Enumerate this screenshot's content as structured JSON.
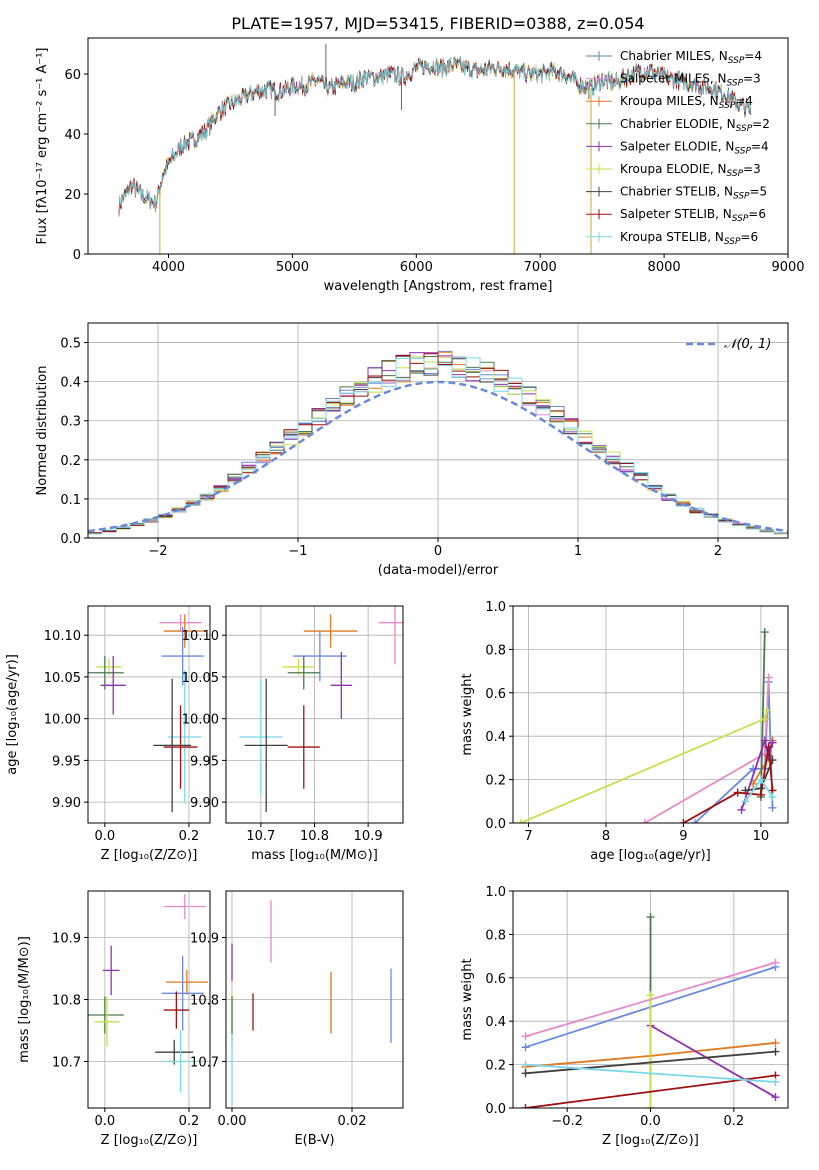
{
  "colors": {
    "Chabrier MILES": "#5a8a9a",
    "Salpeter MILES": "#e88ac8",
    "Kroupa MILES": "#e07a20",
    "Chabrier ELODIE": "#4a7a50",
    "Salpeter ELODIE": "#9030b0",
    "Kroupa ELODIE": "#c8e050",
    "Chabrier STELIB": "#404040",
    "Salpeter STELIB": "#a01010",
    "Kroupa STELIB": "#78d8e8"
  },
  "line_colors": [
    "#5a8a9a",
    "#e88ac8",
    "#e07a20",
    "#4a7a50",
    "#9030b0",
    "#c8e050",
    "#404040",
    "#a01010",
    "#78d8e8"
  ],
  "hist_colors": [
    "#6a8ae0",
    "#e88ac8",
    "#e07a20",
    "#4a7a50",
    "#9030b0",
    "#c8e050",
    "#404040",
    "#a01010",
    "#78d8e8"
  ],
  "chart_data": [
    {
      "id": "spectrum",
      "type": "line",
      "title": "PLATE=1957, MJD=53415, FIBERID=0388, z=0.054",
      "xlabel": "wavelength [Angstrom, rest frame]",
      "ylabel": "Flux [fλ10⁻¹⁷ erg cm⁻² s⁻¹ A⁻¹]",
      "xlim": [
        3350,
        9000
      ],
      "ylim": [
        0,
        72
      ],
      "xticks": [
        4000,
        5000,
        6000,
        7000,
        8000,
        9000
      ],
      "yticks": [
        0,
        20,
        40,
        60
      ],
      "grid": false,
      "legend_position": "upper right",
      "legend": [
        "Chabrier MILES, N_SSP=4",
        "Salpeter MILES, N_SSP=3",
        "Kroupa MILES, N_SSP=4",
        "Chabrier ELODIE, N_SSP=2",
        "Salpeter ELODIE, N_SSP=4",
        "Kroupa ELODIE, N_SSP=3",
        "Chabrier STELIB, N_SSP=5",
        "Salpeter STELIB, N_SSP=6",
        "Kroupa STELIB, N_SSP=6"
      ],
      "continuum": [
        [
          3600,
          16
        ],
        [
          3700,
          23
        ],
        [
          3800,
          19
        ],
        [
          3900,
          17
        ],
        [
          3950,
          26
        ],
        [
          4000,
          30
        ],
        [
          4100,
          36
        ],
        [
          4200,
          38
        ],
        [
          4300,
          41
        ],
        [
          4400,
          47
        ],
        [
          4500,
          50
        ],
        [
          4600,
          52
        ],
        [
          4700,
          54
        ],
        [
          4800,
          55
        ],
        [
          4900,
          54
        ],
        [
          5000,
          56
        ],
        [
          5100,
          56
        ],
        [
          5200,
          58
        ],
        [
          5300,
          55
        ],
        [
          5400,
          57
        ],
        [
          5500,
          57
        ],
        [
          5600,
          59
        ],
        [
          5700,
          59
        ],
        [
          5800,
          60
        ],
        [
          5900,
          59
        ],
        [
          6000,
          62
        ],
        [
          6100,
          63
        ],
        [
          6200,
          62
        ],
        [
          6300,
          63
        ],
        [
          6400,
          62
        ],
        [
          6500,
          61
        ],
        [
          6600,
          62
        ],
        [
          6700,
          62
        ],
        [
          6800,
          61
        ],
        [
          6900,
          60
        ],
        [
          7000,
          60
        ],
        [
          7100,
          61
        ],
        [
          7200,
          60
        ],
        [
          7300,
          57
        ],
        [
          7400,
          55
        ],
        [
          7500,
          58
        ],
        [
          7600,
          57
        ],
        [
          7700,
          59
        ],
        [
          7800,
          61
        ],
        [
          7900,
          61
        ],
        [
          8000,
          59
        ],
        [
          8100,
          58
        ],
        [
          8200,
          57
        ],
        [
          8300,
          56
        ],
        [
          8400,
          55
        ],
        [
          8500,
          53
        ],
        [
          8600,
          50
        ],
        [
          8700,
          48
        ]
      ],
      "spikes": [
        [
          5270,
          70
        ],
        [
          3930,
          0
        ],
        [
          6790,
          0
        ],
        [
          7410,
          0
        ],
        [
          5880,
          48
        ],
        [
          4860,
          46
        ]
      ]
    },
    {
      "id": "residuals",
      "type": "histogram",
      "xlabel": "(data-model)/error",
      "ylabel": "Normed distribution",
      "xlim": [
        -2.5,
        2.5
      ],
      "ylim": [
        0,
        0.55
      ],
      "xticks": [
        -2,
        -1,
        0,
        1,
        2
      ],
      "yticks": [
        0,
        0.1,
        0.2,
        0.3,
        0.4,
        0.5
      ],
      "xtick_labels": [
        "−2",
        "−1",
        "0",
        "1",
        "2"
      ],
      "grid": true,
      "legend": [
        "𝒩(0, 1)"
      ],
      "legend_position": "upper right",
      "bin_width": 0.1
    },
    {
      "id": "age-vs-z",
      "type": "scatter",
      "errorbars": true,
      "xlabel": "Z [log₁₀(Z/Z⊙)]",
      "ylabel": "age  [log₁₀(age/yr)]",
      "xlim": [
        -0.04,
        0.25
      ],
      "ylim": [
        9.875,
        10.135
      ],
      "xticks": [
        0.0,
        0.2
      ],
      "yticks": [
        9.9,
        9.95,
        10.0,
        10.05,
        10.1
      ],
      "grid": true,
      "points": [
        {
          "x": 0.01,
          "y": 10.062,
          "xerr": 0.03,
          "yerr": 0.01,
          "c": 5
        },
        {
          "x": 0.0,
          "y": 10.055,
          "xerr": 0.045,
          "yerr": 0.02,
          "c": 3
        },
        {
          "x": 0.02,
          "y": 10.04,
          "xerr": 0.03,
          "yerr": 0.035,
          "c": 4
        },
        {
          "x": 0.18,
          "y": 10.115,
          "xerr": 0.05,
          "yerr": 0.01,
          "c": 1
        },
        {
          "x": 0.19,
          "y": 10.105,
          "xerr": 0.05,
          "yerr": 0.02,
          "c": 2
        },
        {
          "x": 0.185,
          "y": 10.075,
          "xerr": 0.05,
          "yerr": 0.035,
          "c": 0
        },
        {
          "x": 0.19,
          "y": 9.978,
          "xerr": 0.04,
          "yerr": 0.08,
          "c": 8
        },
        {
          "x": 0.16,
          "y": 9.968,
          "xerr": 0.045,
          "yerr": 0.08,
          "c": 6
        },
        {
          "x": 0.18,
          "y": 9.966,
          "xerr": 0.04,
          "yerr": 0.05,
          "c": 7
        }
      ]
    },
    {
      "id": "age-vs-mass",
      "type": "scatter",
      "errorbars": true,
      "xlabel": "mass [log₁₀(M/M⊙)]",
      "ylabel": "",
      "xlim": [
        10.635,
        10.965
      ],
      "ylim": [
        9.875,
        10.135
      ],
      "xticks": [
        10.7,
        10.8,
        10.9
      ],
      "yticks": [
        9.9,
        9.95,
        10.0,
        10.05,
        10.1
      ],
      "grid": true,
      "points": [
        {
          "x": 10.95,
          "y": 10.115,
          "xerr": 0.03,
          "yerr": 0.05,
          "c": 1
        },
        {
          "x": 10.83,
          "y": 10.105,
          "xerr": 0.05,
          "yerr": 0.02,
          "c": 2
        },
        {
          "x": 10.81,
          "y": 10.075,
          "xerr": 0.05,
          "yerr": 0.03,
          "c": 0
        },
        {
          "x": 10.77,
          "y": 10.062,
          "xerr": 0.03,
          "yerr": 0.01,
          "c": 5
        },
        {
          "x": 10.78,
          "y": 10.055,
          "xerr": 0.03,
          "yerr": 0.02,
          "c": 3
        },
        {
          "x": 10.85,
          "y": 10.04,
          "xerr": 0.02,
          "yerr": 0.04,
          "c": 4
        },
        {
          "x": 10.7,
          "y": 9.978,
          "xerr": 0.04,
          "yerr": 0.07,
          "c": 8
        },
        {
          "x": 10.71,
          "y": 9.968,
          "xerr": 0.04,
          "yerr": 0.08,
          "c": 6
        },
        {
          "x": 10.78,
          "y": 9.966,
          "xerr": 0.03,
          "yerr": 0.05,
          "c": 7
        }
      ]
    },
    {
      "id": "weight-vs-age",
      "type": "line",
      "xlabel": "age  [log₁₀(age/yr)]",
      "ylabel": "mass weight",
      "xlim": [
        6.8,
        10.35
      ],
      "ylim": [
        0,
        1.0
      ],
      "xticks": [
        7,
        8,
        9,
        10
      ],
      "yticks": [
        0.0,
        0.2,
        0.4,
        0.6,
        0.8,
        1.0
      ],
      "grid": true,
      "series": [
        {
          "c": 0,
          "pts": [
            [
              9.15,
              0.0
            ],
            [
              9.9,
              0.25
            ],
            [
              10.05,
              0.25
            ],
            [
              10.1,
              0.65
            ],
            [
              10.15,
              0.07
            ]
          ]
        },
        {
          "c": 1,
          "pts": [
            [
              8.5,
              0.0
            ],
            [
              10.05,
              0.32
            ],
            [
              10.1,
              0.67
            ]
          ]
        },
        {
          "c": 2,
          "pts": [
            [
              9.9,
              0.18
            ],
            [
              10.1,
              0.3
            ],
            [
              10.15,
              0.38
            ]
          ]
        },
        {
          "c": 3,
          "pts": [
            [
              10.0,
              0.12
            ],
            [
              10.05,
              0.88
            ]
          ]
        },
        {
          "c": 4,
          "pts": [
            [
              9.75,
              0.06
            ],
            [
              10.05,
              0.38
            ],
            [
              10.1,
              0.31
            ],
            [
              10.15,
              0.37
            ]
          ]
        },
        {
          "c": 5,
          "pts": [
            [
              6.9,
              0.0
            ],
            [
              10.05,
              0.48
            ],
            [
              10.08,
              0.52
            ]
          ]
        },
        {
          "c": 6,
          "pts": [
            [
              9.8,
              0.15
            ],
            [
              10.0,
              0.16
            ],
            [
              10.15,
              0.29
            ]
          ]
        },
        {
          "c": 7,
          "pts": [
            [
              9.0,
              0.0
            ],
            [
              9.7,
              0.14
            ],
            [
              10.0,
              0.13
            ],
            [
              10.1,
              0.35
            ],
            [
              10.15,
              0.15
            ]
          ]
        },
        {
          "c": 8,
          "pts": [
            [
              9.8,
              0.1
            ],
            [
              10.0,
              0.2
            ],
            [
              10.15,
              0.12
            ]
          ]
        }
      ]
    },
    {
      "id": "mass-vs-z",
      "type": "scatter",
      "errorbars": true,
      "xlabel": "Z [log₁₀(Z/Z⊙)]",
      "ylabel": "mass [log₁₀(M/M⊙)]",
      "xlim": [
        -0.04,
        0.25
      ],
      "ylim": [
        10.625,
        10.975
      ],
      "xticks": [
        0.0,
        0.2
      ],
      "yticks": [
        10.7,
        10.8,
        10.9
      ],
      "grid": true,
      "points": [
        {
          "x": 0.19,
          "y": 10.95,
          "xerr": 0.05,
          "yerr": 0.02,
          "c": 1
        },
        {
          "x": 0.015,
          "y": 10.847,
          "xerr": 0.02,
          "yerr": 0.04,
          "c": 4
        },
        {
          "x": 0.195,
          "y": 10.828,
          "xerr": 0.05,
          "yerr": 0.02,
          "c": 2
        },
        {
          "x": 0.185,
          "y": 10.81,
          "xerr": 0.05,
          "yerr": 0.06,
          "c": 0
        },
        {
          "x": 0.17,
          "y": 10.783,
          "xerr": 0.03,
          "yerr": 0.03,
          "c": 7
        },
        {
          "x": 0.0,
          "y": 10.775,
          "xerr": 0.045,
          "yerr": 0.03,
          "c": 3
        },
        {
          "x": 0.005,
          "y": 10.764,
          "xerr": 0.03,
          "yerr": 0.04,
          "c": 5
        },
        {
          "x": 0.165,
          "y": 10.715,
          "xerr": 0.045,
          "yerr": 0.02,
          "c": 6
        },
        {
          "x": 0.18,
          "y": 10.7,
          "xerr": 0.04,
          "yerr": 0.05,
          "c": 8
        }
      ]
    },
    {
      "id": "mass-vs-ebv",
      "type": "scatter",
      "errorbars": true,
      "xlabel": "E(B-V)",
      "ylabel": "",
      "xlim": [
        -0.001,
        0.0285
      ],
      "ylim": [
        10.625,
        10.975
      ],
      "xticks": [
        0.0,
        0.02
      ],
      "yticks": [
        10.7,
        10.8,
        10.9
      ],
      "grid": true,
      "points": [
        {
          "x": 0.0,
          "y": 10.86,
          "xerr": 0,
          "yerr": 0.03,
          "c": 4
        },
        {
          "x": 0.0,
          "y": 10.77,
          "xerr": 0,
          "yerr": 0.04,
          "c": 5
        },
        {
          "x": 0.0,
          "y": 10.69,
          "xerr": 0,
          "yerr": 0.06,
          "c": 8
        },
        {
          "x": 0.0,
          "y": 10.775,
          "xerr": 0,
          "yerr": 0.03,
          "c": 3
        },
        {
          "x": 0.0035,
          "y": 10.78,
          "xerr": 0,
          "yerr": 0.03,
          "c": 7
        },
        {
          "x": 0.0065,
          "y": 10.91,
          "xerr": 0,
          "yerr": 0.05,
          "c": 1
        },
        {
          "x": 0.0165,
          "y": 10.795,
          "xerr": 0,
          "yerr": 0.05,
          "c": 2
        },
        {
          "x": 0.0265,
          "y": 10.79,
          "xerr": 0,
          "yerr": 0.06,
          "c": 0
        }
      ]
    },
    {
      "id": "weight-vs-z",
      "type": "line",
      "xlabel": "Z [log₁₀(Z/Z⊙)]",
      "ylabel": "mass weight",
      "xlim": [
        -0.33,
        0.33
      ],
      "ylim": [
        0,
        1.0
      ],
      "xticks": [
        -0.2,
        0.0,
        0.2
      ],
      "yticks": [
        0.0,
        0.2,
        0.4,
        0.6,
        0.8,
        1.0
      ],
      "xtick_labels": [
        "−0.2",
        "0.0",
        "0.2"
      ],
      "grid": true,
      "series": [
        {
          "c": 0,
          "pts": [
            [
              -0.3,
              0.28
            ],
            [
              0.3,
              0.65
            ]
          ]
        },
        {
          "c": 1,
          "pts": [
            [
              -0.3,
              0.33
            ],
            [
              0.3,
              0.67
            ]
          ]
        },
        {
          "c": 2,
          "pts": [
            [
              -0.3,
              0.19
            ],
            [
              0.0,
              0.24
            ],
            [
              0.3,
              0.3
            ]
          ]
        },
        {
          "c": 3,
          "pts": [
            [
              0.0,
              0.0
            ],
            [
              0.0,
              0.88
            ]
          ]
        },
        {
          "c": 4,
          "pts": [
            [
              0.0,
              0.38
            ],
            [
              0.3,
              0.05
            ]
          ]
        },
        {
          "c": 5,
          "pts": [
            [
              0.0,
              0.0
            ],
            [
              0.0,
              0.52
            ]
          ]
        },
        {
          "c": 6,
          "pts": [
            [
              -0.3,
              0.16
            ],
            [
              0.3,
              0.26
            ]
          ]
        },
        {
          "c": 7,
          "pts": [
            [
              -0.3,
              0.0
            ],
            [
              0.3,
              0.15
            ]
          ]
        },
        {
          "c": 8,
          "pts": [
            [
              -0.3,
              0.2
            ],
            [
              0.3,
              0.12
            ]
          ]
        }
      ]
    }
  ]
}
